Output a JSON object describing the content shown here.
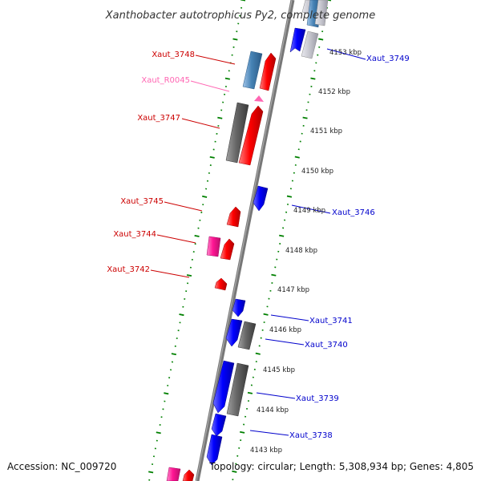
{
  "title": "Xanthobacter autotrophicus Py2, complete genome",
  "footer": {
    "accession": "Accession: NC_009720",
    "summary": "Topology: circular; Length: 5,308,934 bp; Genes: 4,805"
  },
  "colors": {
    "cds_forward": "#ff0000",
    "cds_reverse": "#0000ff",
    "pseudo": "#666666",
    "rna": "#ff66b3",
    "other": "#4682b4",
    "tick": "#008000",
    "backbone": "#777777"
  },
  "kbp_labels": [
    "4153 kbp",
    "4152 kbp",
    "4151 kbp",
    "4150 kbp",
    "4149 kbp",
    "4148 kbp",
    "4147 kbp",
    "4146 kbp",
    "4145 kbp",
    "4144 kbp",
    "4143 kbp"
  ],
  "labels": {
    "xaut_3748": "Xaut_3748",
    "xaut_r0045": "Xaut_R0045",
    "xaut_3747": "Xaut_3747",
    "xaut_3745": "Xaut_3745",
    "xaut_3744": "Xaut_3744",
    "xaut_3742": "Xaut_3742",
    "xaut_3749": "Xaut_3749",
    "xaut_3746": "Xaut_3746",
    "xaut_3741": "Xaut_3741",
    "xaut_3740": "Xaut_3740",
    "xaut_3739": "Xaut_3739",
    "xaut_3738": "Xaut_3738"
  }
}
